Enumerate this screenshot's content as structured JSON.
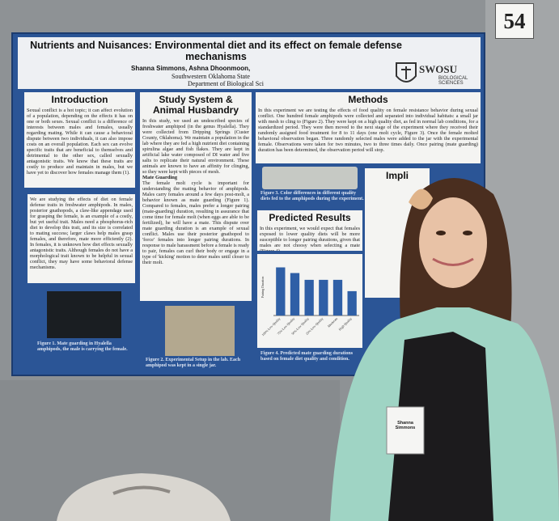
{
  "sign": "54",
  "poster": {
    "title": "Nutrients and Nuisances: Environmental diet and its effect on female defense mechanisms",
    "authors": "Shanna Simmons, Ashna Dhoonmoon,",
    "institution": "Southwestern Oklahoma State",
    "department": "Department of Biological Sci",
    "logo": {
      "name": "SWOSU",
      "unit": "BIOLOGICAL SCIENCES"
    },
    "introduction": {
      "heading": "Introduction",
      "paragraphs": [
        "Sexual conflict is a hot topic; it can affect evolution of a population, depending on the effects it has on one or both sexes. Sexual conflict is a difference of interests between males and females, usually regarding mating. While it can cause a behavioral dispute between two individuals, it can also impose costs on an overall population. Each sex can evolve specific traits that are beneficial to themselves and detrimental to the other sex, called sexually antagonistic traits. We know that these traits are costly to produce and maintain in males, but we have yet to discover how females manage them (1).",
        "We are studying the effects of diet on female defense traits in freshwater amphipods. In males, posterior gnathopods, a claw-like appendage used for grasping the female, is an example of a costly, but yet useful trait. Males need a phosphorus-rich diet to develop this trait, and its size is correlated to mating success; larger claws help males grasp females, and therefore, mate more efficiently (2). In females, it is unknown how diet effects sexually antagonistic traits. Although females do not have a morphological trait known to be helpful in sexual conflict, they may have some behavioral defense mechanisms."
      ],
      "figure_caption": "Figure 1. Mate guarding in Hyalella amphipods, the male is carrying the female."
    },
    "study_system": {
      "heading": "Study System & Animal Husbandry",
      "paragraph": "In this study, we used an undescribed species of freshwater amphipod (in the genus Hyalella). They were collected from Dripping Springs (Custer County, Oklahoma). We maintain a population in the lab where they are fed a high nutrient diet containing spirulina algae and fish flakes. They are kept in artificial lake water composed of DI water and five salts to replicate their natural environment. These animals are known to have an affinity for clinging, so they were kept with pieces of mesh.",
      "subheading": "Mate Guarding",
      "mate_guarding": "The female molt cycle is important for understanding the mating behavior of amphipods. Males carry females around a few days post-molt, a behavior known as mate guarding (Figure 1). Compared to females, males prefer a longer pairing (mate-guarding) duration, resulting in assurance that come time for female molt (when eggs are able to be fertilized), he will have a mate. This dispute over mate guarding duration is an example of sexual conflict. Males use their posterior gnathopod to 'force' females into longer pairing durations. In response to male harassment before a female is ready to pair, females can curl their body or engage in a type of 'kicking' motion to deter males until closer to their molt.",
      "figure_caption": "Figure 2. Experimental Setup in the lab. Each amphipod was kept in a single jar."
    },
    "methods": {
      "heading": "Methods",
      "paragraph": "In this experiment we are testing the effects of food quality on female resistance behavior during sexual conflict. One hundred female amphipods were collected and separated into individual habitats: a small jar with mesh to cling to (Figure 2). They were kept on a high quality diet, as fed in normal lab conditions, for a standardized period. They were then moved to the next stage of the experiment where they received their randomly assigned food treatment for 8 to 11 days (one molt cycle, Figure 3). Once the female molted behavioral observation began. Three randomly selected males were added to the jar with the experimental female. Observations were taken for two minutes, two to three times daily. Once pairing (mate guarding) duration has been determined, the observation period will stop.",
      "figure_caption": "Figure 3. Color differences in different quality diets fed to the amphipods during the experiment."
    },
    "predicted_results": {
      "heading": "Predicted Results",
      "paragraph": "In this experiment, we would expect that females exposed to lower quality diets will be more susceptible to longer pairing durations, given that males are not choosy when selecting a mate (Figure 4).",
      "figure_caption": "Figure 4. Predicted mate guarding durations based on female diet quality and condition."
    },
    "implications": {
      "heading": "Impli"
    },
    "chart": {
      "y_label": "Pairing Duration",
      "categories": [
        "100% Low Quality",
        "75% Low Quality",
        "50% Low Quality",
        "25% Low Quality",
        "Moderate",
        "High Quality"
      ],
      "values": [
        8.5,
        7.5,
        6.3,
        6.3,
        6.3,
        4.3
      ],
      "ylim": [
        0,
        10
      ],
      "color": "#2f5fa6"
    }
  },
  "badge": "Shanna Simmons"
}
